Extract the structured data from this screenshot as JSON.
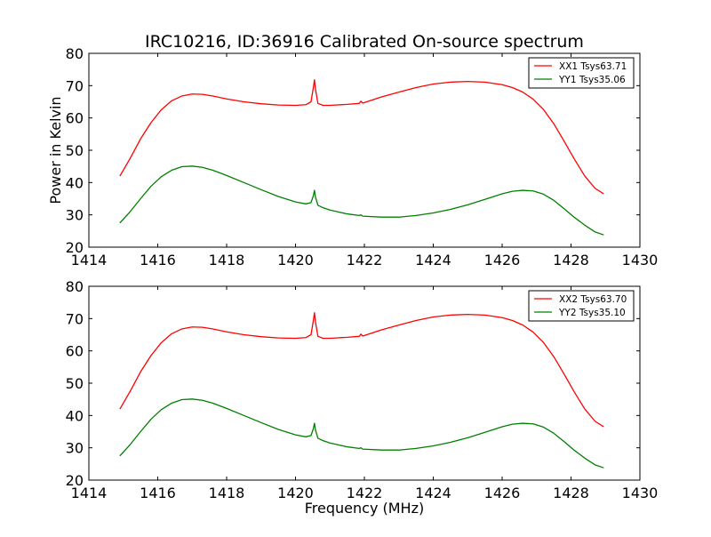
{
  "title": "IRC10216, ID:36916 Calibrated On-source spectrum",
  "colors": {
    "xx": "#ff0000",
    "yy": "#008000"
  },
  "chart_data": [
    {
      "type": "line",
      "title": "IRC10216, ID:36916 Calibrated On-source spectrum",
      "xlabel": "",
      "ylabel": "Power in Kelvin",
      "xlim": [
        1414,
        1430
      ],
      "ylim": [
        20,
        80
      ],
      "xticks": [
        "1414",
        "1416",
        "1418",
        "1420",
        "1422",
        "1424",
        "1426",
        "1428",
        "1430"
      ],
      "yticks": [
        "20",
        "30",
        "40",
        "50",
        "60",
        "70",
        "80"
      ],
      "legend_position": "top-right",
      "grid": false,
      "series": [
        {
          "name": "XX1 Tsys63.71",
          "color": "#ff0000",
          "x": [
            1414.9,
            1415.2,
            1415.5,
            1415.8,
            1416.1,
            1416.4,
            1416.7,
            1417.0,
            1417.3,
            1417.6,
            1418.0,
            1418.5,
            1419.0,
            1419.5,
            1420.0,
            1420.3,
            1420.45,
            1420.52,
            1420.55,
            1420.58,
            1420.65,
            1420.8,
            1421.0,
            1421.5,
            1421.85,
            1421.9,
            1421.95,
            1422.5,
            1423.0,
            1423.5,
            1424.0,
            1424.5,
            1425.0,
            1425.5,
            1426.0,
            1426.3,
            1426.6,
            1426.9,
            1427.2,
            1427.5,
            1427.8,
            1428.1,
            1428.4,
            1428.7,
            1428.95
          ],
          "y": [
            42,
            47.5,
            53.5,
            58.5,
            62.5,
            65.3,
            66.8,
            67.4,
            67.3,
            66.8,
            65.9,
            65.0,
            64.4,
            64.0,
            63.9,
            64.1,
            65.0,
            69.5,
            71.8,
            69.0,
            64.5,
            63.9,
            63.9,
            64.2,
            64.5,
            65.2,
            64.6,
            66.5,
            68.0,
            69.4,
            70.5,
            71.1,
            71.3,
            71.1,
            70.3,
            69.4,
            68.0,
            65.8,
            62.6,
            58.2,
            52.8,
            47.2,
            42.0,
            38.2,
            36.5
          ]
        },
        {
          "name": "YY1 Tsys35.06",
          "color": "#008000",
          "x": [
            1414.9,
            1415.2,
            1415.5,
            1415.8,
            1416.1,
            1416.4,
            1416.7,
            1417.0,
            1417.3,
            1417.6,
            1418.0,
            1418.5,
            1419.0,
            1419.5,
            1420.0,
            1420.3,
            1420.45,
            1420.52,
            1420.55,
            1420.58,
            1420.65,
            1420.8,
            1421.0,
            1421.5,
            1421.85,
            1421.9,
            1421.95,
            1422.5,
            1423.0,
            1423.5,
            1424.0,
            1424.5,
            1425.0,
            1425.5,
            1426.0,
            1426.3,
            1426.6,
            1426.9,
            1427.2,
            1427.5,
            1427.8,
            1428.1,
            1428.4,
            1428.7,
            1428.95
          ],
          "y": [
            27.5,
            31.0,
            35.0,
            38.8,
            41.8,
            43.8,
            44.9,
            45.1,
            44.7,
            43.8,
            42.2,
            40.0,
            37.8,
            35.7,
            34.0,
            33.4,
            33.8,
            36.0,
            37.6,
            35.5,
            33.0,
            32.2,
            31.5,
            30.3,
            29.8,
            30.0,
            29.6,
            29.3,
            29.3,
            29.8,
            30.6,
            31.7,
            33.1,
            34.8,
            36.5,
            37.3,
            37.6,
            37.4,
            36.4,
            34.5,
            31.9,
            29.2,
            26.8,
            24.7,
            23.8
          ]
        }
      ]
    },
    {
      "type": "line",
      "title": "",
      "xlabel": "Frequency (MHz)",
      "ylabel": "",
      "xlim": [
        1414,
        1430
      ],
      "ylim": [
        20,
        80
      ],
      "xticks": [
        "1414",
        "1416",
        "1418",
        "1420",
        "1422",
        "1424",
        "1426",
        "1428",
        "1430"
      ],
      "yticks": [
        "20",
        "30",
        "40",
        "50",
        "60",
        "70",
        "80"
      ],
      "legend_position": "top-right",
      "grid": false,
      "series": [
        {
          "name": "XX2 Tsys63.70",
          "color": "#ff0000",
          "x": [
            1414.9,
            1415.2,
            1415.5,
            1415.8,
            1416.1,
            1416.4,
            1416.7,
            1417.0,
            1417.3,
            1417.6,
            1418.0,
            1418.5,
            1419.0,
            1419.5,
            1420.0,
            1420.3,
            1420.45,
            1420.52,
            1420.55,
            1420.58,
            1420.65,
            1420.8,
            1421.0,
            1421.5,
            1421.85,
            1421.9,
            1421.95,
            1422.5,
            1423.0,
            1423.5,
            1424.0,
            1424.5,
            1425.0,
            1425.5,
            1426.0,
            1426.3,
            1426.6,
            1426.9,
            1427.2,
            1427.5,
            1427.8,
            1428.1,
            1428.4,
            1428.7,
            1428.95
          ],
          "y": [
            42,
            47.5,
            53.5,
            58.5,
            62.5,
            65.3,
            66.8,
            67.4,
            67.3,
            66.8,
            65.9,
            65.0,
            64.4,
            64.0,
            63.9,
            64.1,
            65.0,
            69.5,
            71.8,
            69.0,
            64.5,
            63.9,
            63.9,
            64.2,
            64.5,
            65.2,
            64.6,
            66.5,
            68.0,
            69.4,
            70.5,
            71.1,
            71.3,
            71.1,
            70.3,
            69.4,
            68.0,
            65.8,
            62.6,
            58.2,
            52.8,
            47.2,
            42.0,
            38.2,
            36.5
          ]
        },
        {
          "name": "YY2 Tsys35.10",
          "color": "#008000",
          "x": [
            1414.9,
            1415.2,
            1415.5,
            1415.8,
            1416.1,
            1416.4,
            1416.7,
            1417.0,
            1417.3,
            1417.6,
            1418.0,
            1418.5,
            1419.0,
            1419.5,
            1420.0,
            1420.3,
            1420.45,
            1420.52,
            1420.55,
            1420.58,
            1420.65,
            1420.8,
            1421.0,
            1421.5,
            1421.85,
            1421.9,
            1421.95,
            1422.5,
            1423.0,
            1423.5,
            1424.0,
            1424.5,
            1425.0,
            1425.5,
            1426.0,
            1426.3,
            1426.6,
            1426.9,
            1427.2,
            1427.5,
            1427.8,
            1428.1,
            1428.4,
            1428.7,
            1428.95
          ],
          "y": [
            27.5,
            31.0,
            35.0,
            38.8,
            41.8,
            43.8,
            44.9,
            45.1,
            44.7,
            43.8,
            42.2,
            40.0,
            37.8,
            35.7,
            34.0,
            33.4,
            33.8,
            36.0,
            37.6,
            35.5,
            33.0,
            32.2,
            31.5,
            30.3,
            29.8,
            30.0,
            29.6,
            29.3,
            29.3,
            29.8,
            30.6,
            31.7,
            33.1,
            34.8,
            36.5,
            37.3,
            37.6,
            37.4,
            36.4,
            34.5,
            31.9,
            29.2,
            26.8,
            24.7,
            23.8
          ]
        }
      ]
    }
  ]
}
